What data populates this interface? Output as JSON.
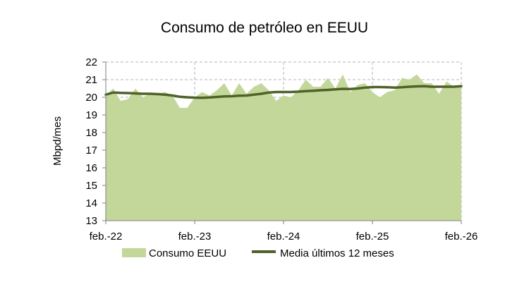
{
  "chart_data": {
    "type": "area",
    "title": "Consumo de petróleo en EEUU",
    "ylabel": "Mbpd/mes",
    "xlabel": "",
    "ylim": [
      13,
      22
    ],
    "yticks": [
      13,
      14,
      15,
      16,
      17,
      18,
      19,
      20,
      21,
      22
    ],
    "xlim": [
      0,
      48
    ],
    "xticks": [
      {
        "x": 0,
        "label": "feb.-22"
      },
      {
        "x": 12,
        "label": "feb.-23"
      },
      {
        "x": 24,
        "label": "feb.-24"
      },
      {
        "x": 36,
        "label": "feb.-25"
      },
      {
        "x": 48,
        "label": "feb.-26"
      }
    ],
    "grid": true,
    "legend_position": "bottom",
    "series": [
      {
        "name": "Consumo EEUU",
        "kind": "area",
        "color": "#c4d79b",
        "values": [
          20.1,
          20.5,
          19.8,
          19.9,
          20.5,
          20.0,
          20.2,
          20.2,
          20.3,
          20.1,
          19.4,
          19.4,
          20.0,
          20.3,
          20.1,
          20.4,
          20.8,
          20.1,
          20.8,
          20.2,
          20.6,
          20.8,
          20.4,
          19.8,
          20.1,
          20.0,
          20.4,
          21.0,
          20.6,
          20.6,
          21.1,
          20.5,
          21.3,
          20.3,
          20.7,
          20.8,
          20.3,
          20.0,
          20.3,
          20.4,
          21.1,
          21.0,
          21.3,
          20.8,
          20.8,
          20.2,
          20.9,
          20.6,
          20.6
        ]
      },
      {
        "name": "Media últimos 12 meses",
        "kind": "line",
        "color": "#4f6228",
        "values": [
          20.15,
          20.27,
          20.25,
          20.24,
          20.22,
          20.2,
          20.2,
          20.18,
          20.15,
          20.1,
          20.03,
          20.0,
          19.98,
          19.97,
          19.99,
          20.02,
          20.05,
          20.06,
          20.09,
          20.1,
          20.15,
          20.2,
          20.27,
          20.3,
          20.3,
          20.3,
          20.32,
          20.35,
          20.37,
          20.4,
          20.42,
          20.45,
          20.48,
          20.47,
          20.5,
          20.55,
          20.58,
          20.58,
          20.57,
          20.55,
          20.57,
          20.6,
          20.62,
          20.63,
          20.6,
          20.6,
          20.6,
          20.6,
          20.63
        ]
      }
    ]
  }
}
